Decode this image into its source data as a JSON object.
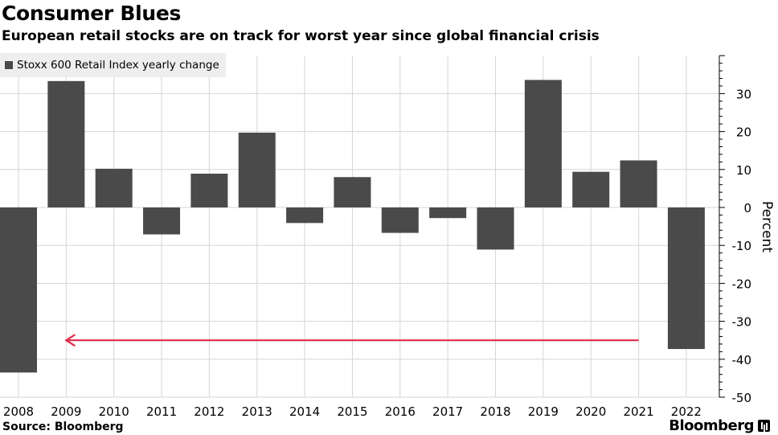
{
  "header": {
    "title": "Consumer Blues",
    "subtitle": "European retail stocks are on track for worst year since global financial crisis"
  },
  "footer": {
    "source": "Source: Bloomberg",
    "brand": "Bloomberg"
  },
  "colors": {
    "bar": "#4a4a4a",
    "grid": "#d6d6d6",
    "arrow": "#e0294a",
    "legend_bg": "#eeeeee"
  },
  "chart_data": {
    "type": "bar",
    "title": "Consumer Blues",
    "subtitle": "European retail stocks are on track for worst year since global financial crisis",
    "legend": [
      "Stoxx 600 Retail Index yearly change"
    ],
    "legend_position": "top-left",
    "categories": [
      "2008",
      "2009",
      "2010",
      "2011",
      "2012",
      "2013",
      "2014",
      "2015",
      "2016",
      "2017",
      "2018",
      "2019",
      "2020",
      "2021",
      "2022"
    ],
    "series": [
      {
        "name": "Stoxx 600 Retail Index yearly change",
        "values": [
          -43.5,
          33.3,
          10.2,
          -7.1,
          8.9,
          19.7,
          -4.1,
          8.0,
          -6.7,
          -2.8,
          -11.1,
          33.6,
          9.4,
          12.4,
          -37.3
        ]
      }
    ],
    "xlabel": "",
    "ylabel": "Percent",
    "y_axis_side": "right",
    "ylim": [
      -50,
      40
    ],
    "yticks": [
      30,
      20,
      10,
      0,
      -10,
      -20,
      -30,
      -40,
      -50
    ],
    "ytick_labels": [
      "30",
      "20",
      "10",
      "0",
      "-10",
      "-20",
      "-30",
      "-40",
      "-50"
    ],
    "grid": true,
    "annotations": [
      {
        "type": "arrow",
        "direction": "left",
        "y": -35,
        "from_category": "2021",
        "to_category": "2009",
        "note": "red arrow at the 2022 level pointing back to 2009"
      }
    ]
  }
}
